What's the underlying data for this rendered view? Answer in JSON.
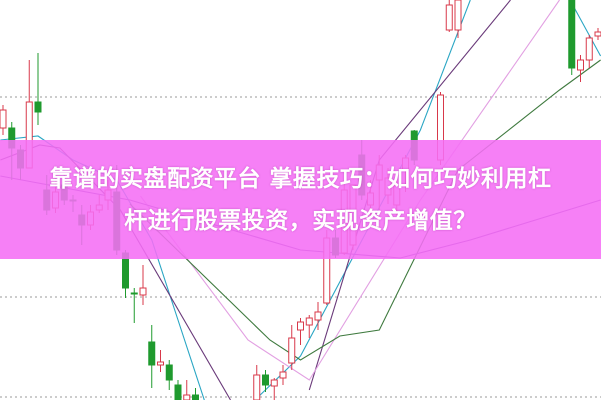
{
  "title": {
    "line1": "靠谱的实盘配资平台 掌握技巧：如何巧妙利用杠",
    "line2": "杆进行股票投资，实现资产增值？"
  },
  "colors": {
    "banner": "#f56ef5",
    "up": "#d8384a",
    "down": "#1f9a2e",
    "grid": "#9a9a9a"
  },
  "chart_data": {
    "type": "candlestick",
    "title": "",
    "xlabel": "",
    "ylabel": "",
    "ylim": [
      0,
      100
    ],
    "grid": "horizontal dotted",
    "candles": [
      {
        "i": 0,
        "o": 68,
        "h": 73.75,
        "l": 66.25,
        "c": 72.5
      },
      {
        "i": 1,
        "o": 68,
        "h": 69.5,
        "l": 55,
        "c": 63
      },
      {
        "i": 2,
        "o": 62.5,
        "h": 63.75,
        "l": 55,
        "c": 58
      },
      {
        "i": 3,
        "o": 58,
        "h": 85,
        "l": 58,
        "c": 74.5
      },
      {
        "i": 4,
        "o": 74.5,
        "h": 86.75,
        "l": 68.75,
        "c": 72
      },
      {
        "i": 5,
        "o": 52.5,
        "h": 56.25,
        "l": 46.25,
        "c": 47.5
      },
      {
        "i": 6,
        "o": 48,
        "h": 55.5,
        "l": 46.75,
        "c": 52
      },
      {
        "i": 7,
        "o": 53.75,
        "h": 56.25,
        "l": 48.75,
        "c": 50
      },
      {
        "i": 8,
        "o": 50,
        "h": 51.25,
        "l": 47,
        "c": 49.75
      },
      {
        "i": 9,
        "o": 46.25,
        "h": 48.75,
        "l": 38.75,
        "c": 43.75
      },
      {
        "i": 10,
        "o": 43.75,
        "h": 48.75,
        "l": 42.5,
        "c": 47
      },
      {
        "i": 11,
        "o": 47.5,
        "h": 51.25,
        "l": 46.75,
        "c": 48.75
      },
      {
        "i": 12,
        "o": 50,
        "h": 55,
        "l": 47.5,
        "c": 52.5
      },
      {
        "i": 13,
        "o": 52,
        "h": 58.75,
        "l": 36.25,
        "c": 37.5
      },
      {
        "i": 14,
        "o": 36.75,
        "h": 37.5,
        "l": 25.5,
        "c": 28
      },
      {
        "i": 15,
        "o": 26.75,
        "h": 28,
        "l": 19.25,
        "c": 26.5
      },
      {
        "i": 16,
        "o": 26.25,
        "h": 33.75,
        "l": 23.75,
        "c": 28
      },
      {
        "i": 17,
        "o": 14.5,
        "h": 18.75,
        "l": 3,
        "c": 8.75
      },
      {
        "i": 18,
        "o": 8.75,
        "h": 12.5,
        "l": 7,
        "c": 9.5
      },
      {
        "i": 19,
        "o": 8.75,
        "h": 10,
        "l": 2.5,
        "c": 5
      },
      {
        "i": 20,
        "o": 3.75,
        "h": 5,
        "l": 0,
        "c": 0
      },
      {
        "i": 21,
        "o": 0,
        "h": 5,
        "l": 0,
        "c": 1.25
      },
      {
        "i": 22,
        "o": 1.25,
        "h": 3,
        "l": 0,
        "c": 0
      },
      {
        "i": 29,
        "o": 0,
        "h": 8.75,
        "l": 0,
        "c": 6.25
      },
      {
        "i": 30,
        "o": 6.25,
        "h": 7.5,
        "l": 2,
        "c": 3.75
      },
      {
        "i": 31,
        "o": 3.5,
        "h": 5.5,
        "l": 0,
        "c": 5
      },
      {
        "i": 32,
        "o": 5.5,
        "h": 8.75,
        "l": 3.75,
        "c": 7
      },
      {
        "i": 33,
        "o": 9.25,
        "h": 18.75,
        "l": 7.5,
        "c": 15.5
      },
      {
        "i": 34,
        "o": 17.5,
        "h": 20.5,
        "l": 13.75,
        "c": 19.5
      },
      {
        "i": 35,
        "o": 18.75,
        "h": 21.25,
        "l": 15.5,
        "c": 20.5
      },
      {
        "i": 36,
        "o": 20,
        "h": 24.5,
        "l": 17.5,
        "c": 22
      },
      {
        "i": 37,
        "o": 24.25,
        "h": 42.5,
        "l": 23.75,
        "c": 40.5
      },
      {
        "i": 38,
        "o": 40.5,
        "h": 42.5,
        "l": 35.5,
        "c": 36.25
      },
      {
        "i": 39,
        "o": 36.75,
        "h": 55,
        "l": 36.25,
        "c": 52.5
      },
      {
        "i": 40,
        "o": 38.75,
        "h": 53.75,
        "l": 37.5,
        "c": 53.75
      },
      {
        "i": 41,
        "o": 61.25,
        "h": 65,
        "l": 50,
        "c": 51.25
      },
      {
        "i": 42,
        "o": 48.75,
        "h": 55,
        "l": 46,
        "c": 51.75
      },
      {
        "i": 43,
        "o": 55,
        "h": 61.25,
        "l": 47.5,
        "c": 58.75
      },
      {
        "i": 44,
        "o": 51.25,
        "h": 58,
        "l": 49,
        "c": 55.5
      },
      {
        "i": 45,
        "o": 48.75,
        "h": 55,
        "l": 46.25,
        "c": 53.75
      },
      {
        "i": 46,
        "o": 57.5,
        "h": 61.25,
        "l": 52,
        "c": 60.5
      },
      {
        "i": 47,
        "o": 67.25,
        "h": 67.5,
        "l": 58.75,
        "c": 60
      },
      {
        "i": 50,
        "o": 60,
        "h": 77,
        "l": 58.75,
        "c": 76.25
      },
      {
        "i": 51,
        "o": 92.5,
        "h": 100,
        "l": 92,
        "c": 98.75
      },
      {
        "i": 52,
        "o": 92.5,
        "h": 100,
        "l": 90.5,
        "c": 100
      },
      {
        "i": 65,
        "o": 100,
        "h": 100,
        "l": 81.25,
        "c": 83
      },
      {
        "i": 66,
        "o": 82.5,
        "h": 86.25,
        "l": 79.5,
        "c": 85
      },
      {
        "i": 67,
        "o": 85,
        "h": 91.25,
        "l": 83,
        "c": 90.5
      },
      {
        "i": 68,
        "o": 91,
        "h": 93,
        "l": 90,
        "c": 92
      }
    ],
    "moving_averages": [
      {
        "color": "#2aa6c4",
        "points": [
          [
            -0.3,
            65
          ],
          [
            4,
            66
          ],
          [
            8,
            60
          ],
          [
            13,
            55
          ],
          [
            17,
            40
          ],
          [
            20,
            20
          ],
          [
            23,
            0
          ],
          null,
          [
            28.8,
            0
          ],
          [
            34,
            11
          ],
          [
            47.7,
            67.5
          ],
          [
            53.4,
            100
          ],
          null,
          [
            64.8,
            100
          ],
          [
            68.3,
            86
          ]
        ]
      },
      {
        "color": "#6a3a7a",
        "points": [
          [
            -0.3,
            60
          ],
          [
            4.2,
            63.75
          ],
          [
            6.5,
            63
          ],
          [
            13.4,
            47.5
          ],
          [
            26,
            0
          ],
          null,
          [
            35,
            2.5
          ],
          [
            43,
            60
          ],
          [
            58,
            100
          ]
        ]
      },
      {
        "color": "#e2a0e2",
        "points": [
          [
            15.7,
            51
          ],
          [
            28,
            15
          ],
          [
            35,
            5
          ],
          [
            47.7,
            50
          ],
          [
            63.6,
            100
          ]
        ]
      },
      {
        "color": "#3f7a3f",
        "points": [
          [
            14.5,
            49
          ],
          [
            30.5,
            15
          ],
          [
            34,
            10
          ],
          [
            38.5,
            16
          ],
          [
            43,
            17.5
          ],
          [
            52,
            57.5
          ],
          [
            63.6,
            77.5
          ],
          [
            68.3,
            85
          ]
        ]
      },
      {
        "color": "#7a4aa8",
        "points": [
          [
            -0.3,
            56
          ],
          [
            14.5,
            50
          ],
          [
            34,
            37.5
          ],
          [
            45.4,
            35.5
          ],
          [
            53.4,
            40
          ],
          [
            68.3,
            50
          ]
        ]
      }
    ]
  }
}
